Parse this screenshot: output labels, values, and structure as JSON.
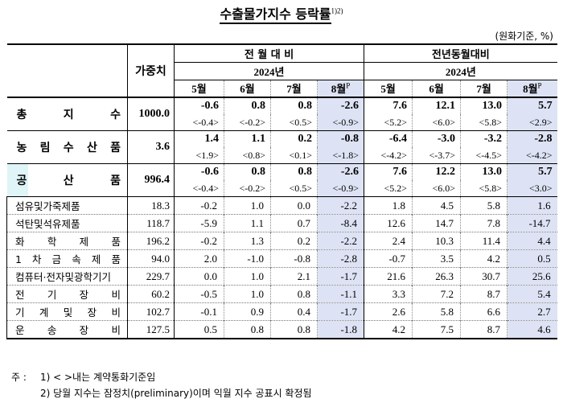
{
  "title": "수출물가지수 등락률",
  "title_sup": "1)2)",
  "unit": "(원화기준, %)",
  "header": {
    "weight": "가중치",
    "group1": "전 월 대 비",
    "group2": "전년동월대비",
    "year": "2024년",
    "months": [
      "5월",
      "6월",
      "7월",
      "8월"
    ],
    "prelim_mark": "P"
  },
  "big_rows": [
    {
      "label": "총 지 수",
      "weight": "1000.0",
      "mom": [
        "-0.6",
        "0.8",
        "0.8",
        "-2.6"
      ],
      "mom_c": [
        "<-0.4>",
        "<-0.2>",
        "<0.5>",
        "<-0.9>"
      ],
      "yoy": [
        "7.6",
        "12.1",
        "13.0",
        "5.7"
      ],
      "yoy_c": [
        "<5.2>",
        "<6.0>",
        "<5.8>",
        "<2.9>"
      ]
    },
    {
      "label": "농 림 수 산 품",
      "weight": "3.6",
      "mom": [
        "1.4",
        "1.1",
        "0.2",
        "-0.8"
      ],
      "mom_c": [
        "<1.9>",
        "<0.8>",
        "<0.1>",
        "<-1.8>"
      ],
      "yoy": [
        "-6.4",
        "-3.0",
        "-3.2",
        "-2.8"
      ],
      "yoy_c": [
        "<-4.2>",
        "<-3.7>",
        "<-4.5>",
        "<-4.2>"
      ]
    },
    {
      "label": "공 산 품",
      "weight": "996.4",
      "mom": [
        "-0.6",
        "0.8",
        "0.8",
        "-2.6"
      ],
      "mom_c": [
        "<-0.4>",
        "<-0.2>",
        "<0.5>",
        "<-0.9>"
      ],
      "yoy": [
        "7.6",
        "12.2",
        "13.0",
        "5.7"
      ],
      "yoy_c": [
        "<5.2>",
        "<6.0>",
        "<5.8>",
        "<3.0>"
      ]
    }
  ],
  "sub_rows": [
    {
      "label": "섬유및가죽제품",
      "weight": "18.3",
      "mom": [
        "-0.2",
        "1.0",
        "0.0",
        "-2.2"
      ],
      "yoy": [
        "1.8",
        "4.5",
        "5.8",
        "1.6"
      ]
    },
    {
      "label": "석탄및석유제품",
      "weight": "118.7",
      "mom": [
        "-5.9",
        "1.1",
        "0.7",
        "-8.4"
      ],
      "yoy": [
        "12.6",
        "14.7",
        "7.8",
        "-14.7"
      ]
    },
    {
      "label": "화 학 제 품",
      "weight": "196.2",
      "mom": [
        "-0.2",
        "1.3",
        "0.2",
        "-2.2"
      ],
      "yoy": [
        "2.4",
        "10.3",
        "11.4",
        "4.4"
      ]
    },
    {
      "label": "1 차 금 속 제 품",
      "weight": "94.0",
      "mom": [
        "2.0",
        "-1.0",
        "-0.8",
        "-2.8"
      ],
      "yoy": [
        "-0.7",
        "3.5",
        "4.2",
        "0.5"
      ]
    },
    {
      "label": "컴퓨터·전자및광학기기",
      "weight": "229.7",
      "mom": [
        "0.0",
        "1.0",
        "2.1",
        "-1.7"
      ],
      "yoy": [
        "21.6",
        "26.3",
        "30.7",
        "25.6"
      ]
    },
    {
      "label": "전 기 장 비",
      "weight": "60.2",
      "mom": [
        "-0.5",
        "1.0",
        "0.8",
        "-1.1"
      ],
      "yoy": [
        "3.3",
        "7.2",
        "8.7",
        "5.4"
      ]
    },
    {
      "label": "기 계 및 장 비",
      "weight": "102.7",
      "mom": [
        "-0.1",
        "0.9",
        "0.4",
        "-1.7"
      ],
      "yoy": [
        "2.6",
        "5.8",
        "6.6",
        "2.7"
      ]
    },
    {
      "label": "운 송 장 비",
      "weight": "127.5",
      "mom": [
        "0.5",
        "0.8",
        "0.8",
        "-1.8"
      ],
      "yoy": [
        "4.2",
        "7.5",
        "8.7",
        "4.6"
      ]
    }
  ],
  "notes": {
    "prefix": "주 :",
    "n1": "1) < >내는 계약통화기준임",
    "n2": "2) 당월 지수는 잠정치(preliminary)이며 익월 지수 공표시 확정됨"
  },
  "colors": {
    "august_column": "#dde3f4",
    "highlight": "#dff5f7"
  }
}
